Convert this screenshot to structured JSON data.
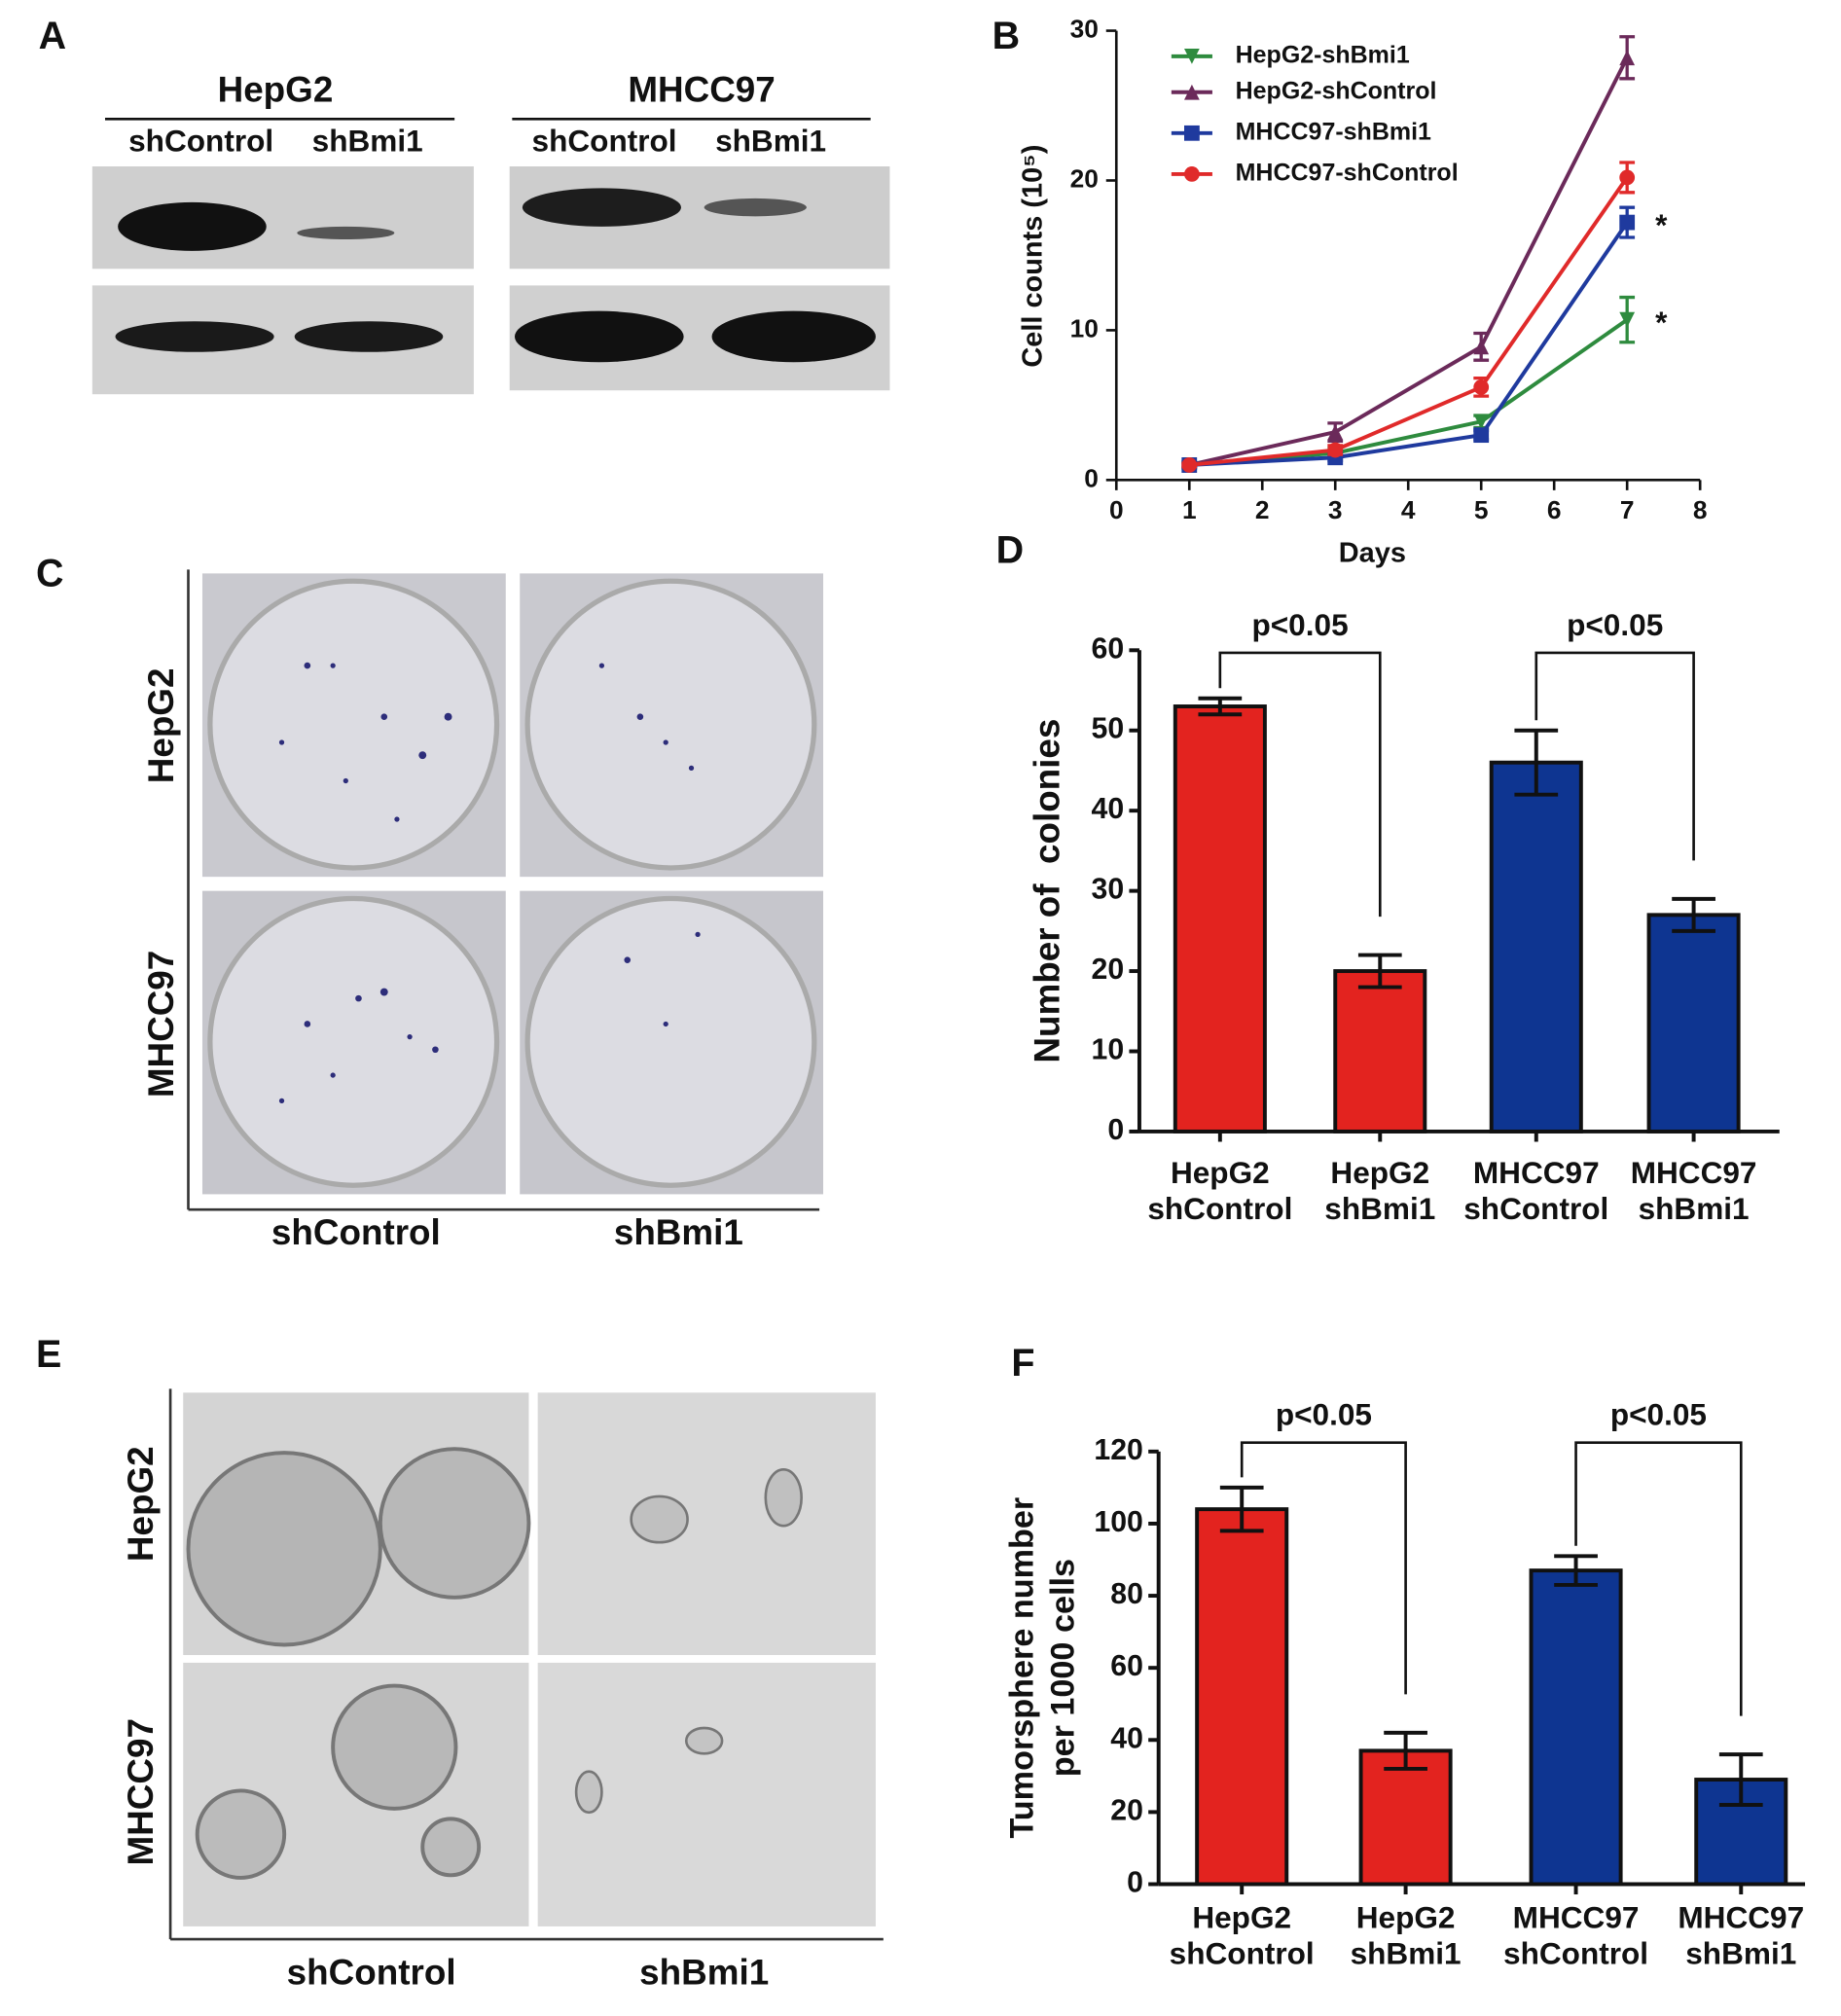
{
  "panel_a": {
    "panel_label": "A",
    "groups": [
      {
        "name": "HepG2",
        "lanes": [
          "shControl",
          "shBmi1"
        ]
      },
      {
        "name": "MHCC97",
        "lanes": [
          "shControl",
          "shBmi1"
        ]
      }
    ]
  },
  "panel_c": {
    "panel_label": "C",
    "rows": [
      "HepG2",
      "MHCC97"
    ],
    "columns": [
      "shControl",
      "shBmi1"
    ]
  },
  "panel_e": {
    "panel_label": "E",
    "rows": [
      "HepG2",
      "MHCC97"
    ],
    "columns": [
      "shControl",
      "shBmi1"
    ]
  },
  "chart_data": [
    {
      "type": "line",
      "panel_label": "B",
      "x_label": "Days",
      "y_label": "Cell counts (10⁵)",
      "x": [
        1,
        3,
        5,
        7
      ],
      "xlim": [
        0,
        8
      ],
      "xticks": [
        0,
        1,
        2,
        3,
        4,
        5,
        6,
        7,
        8
      ],
      "ylim": [
        0,
        30
      ],
      "yticks": [
        0,
        10,
        20,
        30
      ],
      "series": [
        {
          "name": "HepG2-shBmi1",
          "color": "#2e8b3e",
          "marker": "triangle-down",
          "values": [
            1,
            1.8,
            3.9,
            10.7
          ],
          "errors": [
            0.2,
            0.3,
            0.4,
            1.5
          ]
        },
        {
          "name": "HepG2-shControl",
          "color": "#6b2a5a",
          "marker": "triangle-up",
          "values": [
            1,
            3.2,
            8.9,
            28.2
          ],
          "errors": [
            0.2,
            0.6,
            0.9,
            1.4
          ]
        },
        {
          "name": "MHCC97-shBmi1",
          "color": "#1f3a9e",
          "marker": "square",
          "values": [
            1,
            1.5,
            3.0,
            17.2
          ],
          "errors": [
            0.1,
            0.2,
            0.3,
            1.0
          ]
        },
        {
          "name": "MHCC97-shControl",
          "color": "#e02a2a",
          "marker": "circle",
          "values": [
            1,
            2.0,
            6.2,
            20.2
          ],
          "errors": [
            0.1,
            0.3,
            0.6,
            1.0
          ]
        }
      ],
      "annotations": [
        "*",
        "*"
      ],
      "legend": "upper-left"
    },
    {
      "type": "bar",
      "panel_label": "D",
      "y_label": "Number of  colonies",
      "categories": [
        [
          "HepG2",
          "shControl"
        ],
        [
          "HepG2",
          "shBmi1"
        ],
        [
          "MHCC97",
          "shControl"
        ],
        [
          "MHCC97",
          "shBmi1"
        ]
      ],
      "values": [
        53,
        20,
        46,
        27
      ],
      "errors": [
        1,
        2,
        4,
        2
      ],
      "colors": [
        "#e3231f",
        "#e3231f",
        "#0e3591",
        "#0e3591"
      ],
      "ylim": [
        0,
        60
      ],
      "yticks": [
        0,
        10,
        20,
        30,
        40,
        50,
        60
      ],
      "annotations": [
        "p<0.05",
        "p<0.05"
      ]
    },
    {
      "type": "bar",
      "panel_label": "F",
      "y_label": [
        "Tumorsphere number",
        "per 1000 cells"
      ],
      "categories": [
        [
          "HepG2",
          "shControl"
        ],
        [
          "HepG2",
          "shBmi1"
        ],
        [
          "MHCC97",
          "shControl"
        ],
        [
          "MHCC97",
          "shBmi1"
        ]
      ],
      "values": [
        104,
        37,
        87,
        29
      ],
      "errors": [
        6,
        5,
        4,
        7
      ],
      "colors": [
        "#e3231f",
        "#e3231f",
        "#0e3591",
        "#0e3591"
      ],
      "ylim": [
        0,
        120
      ],
      "yticks": [
        0,
        20,
        40,
        60,
        80,
        100,
        120
      ],
      "annotations": [
        "p<0.05",
        "p<0.05"
      ]
    }
  ]
}
